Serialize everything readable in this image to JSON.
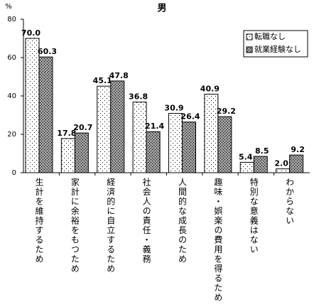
{
  "chart_data": {
    "type": "bar",
    "title": "男",
    "y_unit": "%",
    "categories": [
      "生計を維持するため",
      "家計に余裕をもつため",
      "経済的に自立するため",
      "社会人の責任・義務",
      "人間的な成長のため",
      "趣味・娯楽の費用を得るため",
      "特別な意義はない",
      "わからない"
    ],
    "series": [
      {
        "name": "転職なし",
        "color": "#ffffff",
        "values": [
          70.0,
          17.8,
          45.1,
          36.8,
          30.9,
          40.9,
          5.4,
          2.0
        ],
        "value_labels": [
          "70.0",
          "17.8",
          "45.1",
          "36.8",
          "30.9",
          "40.9",
          "5.4",
          "2.0"
        ]
      },
      {
        "name": "就業経験なし",
        "color": "#9a9a9a",
        "values": [
          60.3,
          20.7,
          47.8,
          21.4,
          26.4,
          29.2,
          8.5,
          9.2
        ],
        "value_labels": [
          "60.3",
          "20.7",
          "47.8",
          "21.4",
          "26.4",
          "29.2",
          "8.5",
          "9.2"
        ]
      }
    ],
    "ylim": [
      0,
      80
    ],
    "yticks": [
      0,
      20,
      40,
      60,
      80
    ],
    "grid": false,
    "legend": "top-right"
  }
}
